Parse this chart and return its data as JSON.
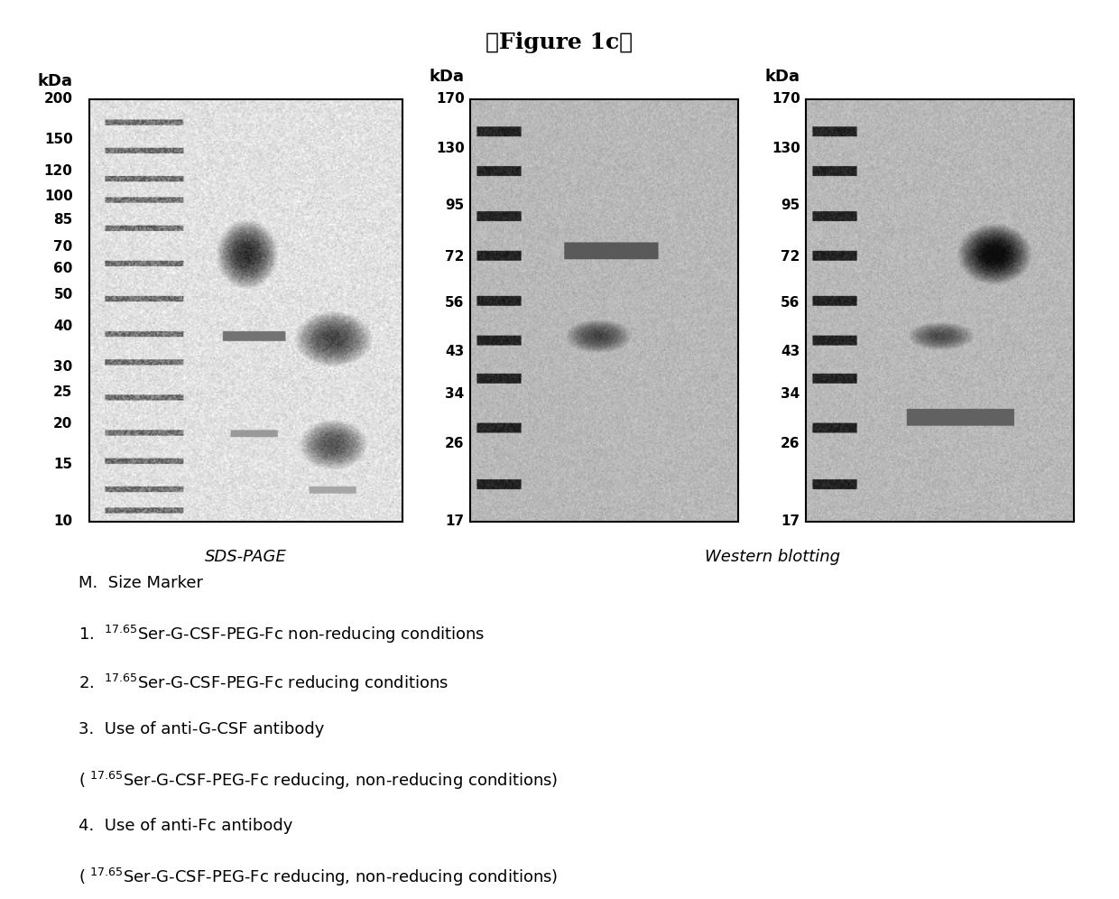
{
  "title": "【Figure 1c】",
  "title_fontsize": 18,
  "background_color": "#ffffff",
  "sds_label": "SDS-PAGE",
  "wb_label": "Western blotting",
  "sds_kda_ticks": [
    200,
    150,
    120,
    100,
    85,
    70,
    60,
    50,
    40,
    30,
    25,
    20,
    15,
    10
  ],
  "wb_kda_ticks": [
    170,
    130,
    95,
    72,
    56,
    43,
    34,
    26,
    17
  ],
  "legend_items": [
    {
      "label": "M.  Size Marker",
      "prefix": ""
    },
    {
      "label": "1.  ¹⁷ʷ⁶⁵Ser-G-CSF-PEG-Fc non-reducing conditions",
      "prefix": ""
    },
    {
      "label": "2.  ¹⁷ʷ⁶⁵Ser-G-CSF-PEG-Fc reducing conditions",
      "prefix": ""
    },
    {
      "label": "3.  Use of anti-G-CSF antibody",
      "prefix": ""
    },
    {
      "label": "( ¹⁷ʷ⁶⁵Ser-G-CSF-PEG-Fc reducing, non-reducing conditions)",
      "prefix": ""
    },
    {
      "label": "4.  Use of anti-Fc antibody",
      "prefix": ""
    },
    {
      "label": "( ¹⁷ʷ⁶⁵Ser-G-CSF-PEG-Fc reducing, non-reducing conditions)",
      "prefix": ""
    }
  ]
}
